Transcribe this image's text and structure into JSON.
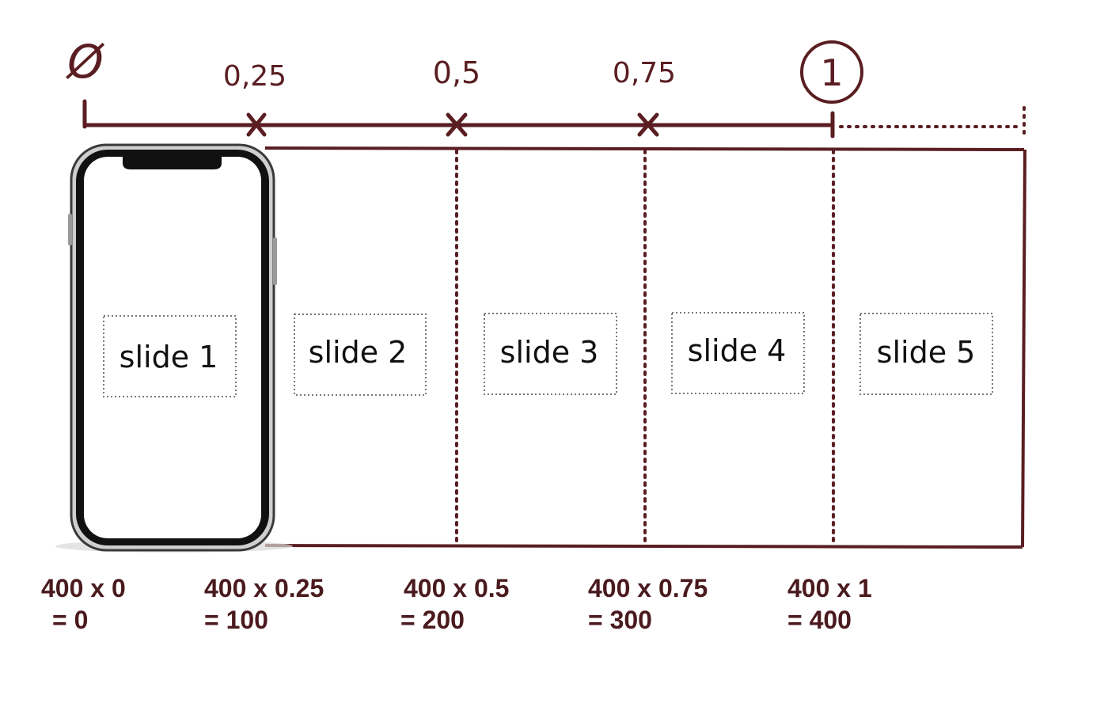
{
  "colors": {
    "ink": "#5a1e22",
    "text": "#4a1a1e",
    "phone_frame": "#3a3a3a",
    "slide_box": "#777777"
  },
  "scale": {
    "zero_label": "Ø",
    "ticks": [
      "0,25",
      "0,5",
      "0,75"
    ],
    "end_label": "1"
  },
  "slides": [
    "slide 1",
    "slide 2",
    "slide 3",
    "slide 4",
    "slide 5"
  ],
  "device": {
    "icon": "smartphone-icon"
  },
  "calculations": [
    {
      "expr": "400 x 0",
      "result": "= 0"
    },
    {
      "expr": "400 x 0.25",
      "result": "= 100"
    },
    {
      "expr": "400 x 0.5",
      "result": "= 200"
    },
    {
      "expr": "400 x 0.75",
      "result": "= 300"
    },
    {
      "expr": "400 x 1",
      "result": "= 400"
    }
  ]
}
